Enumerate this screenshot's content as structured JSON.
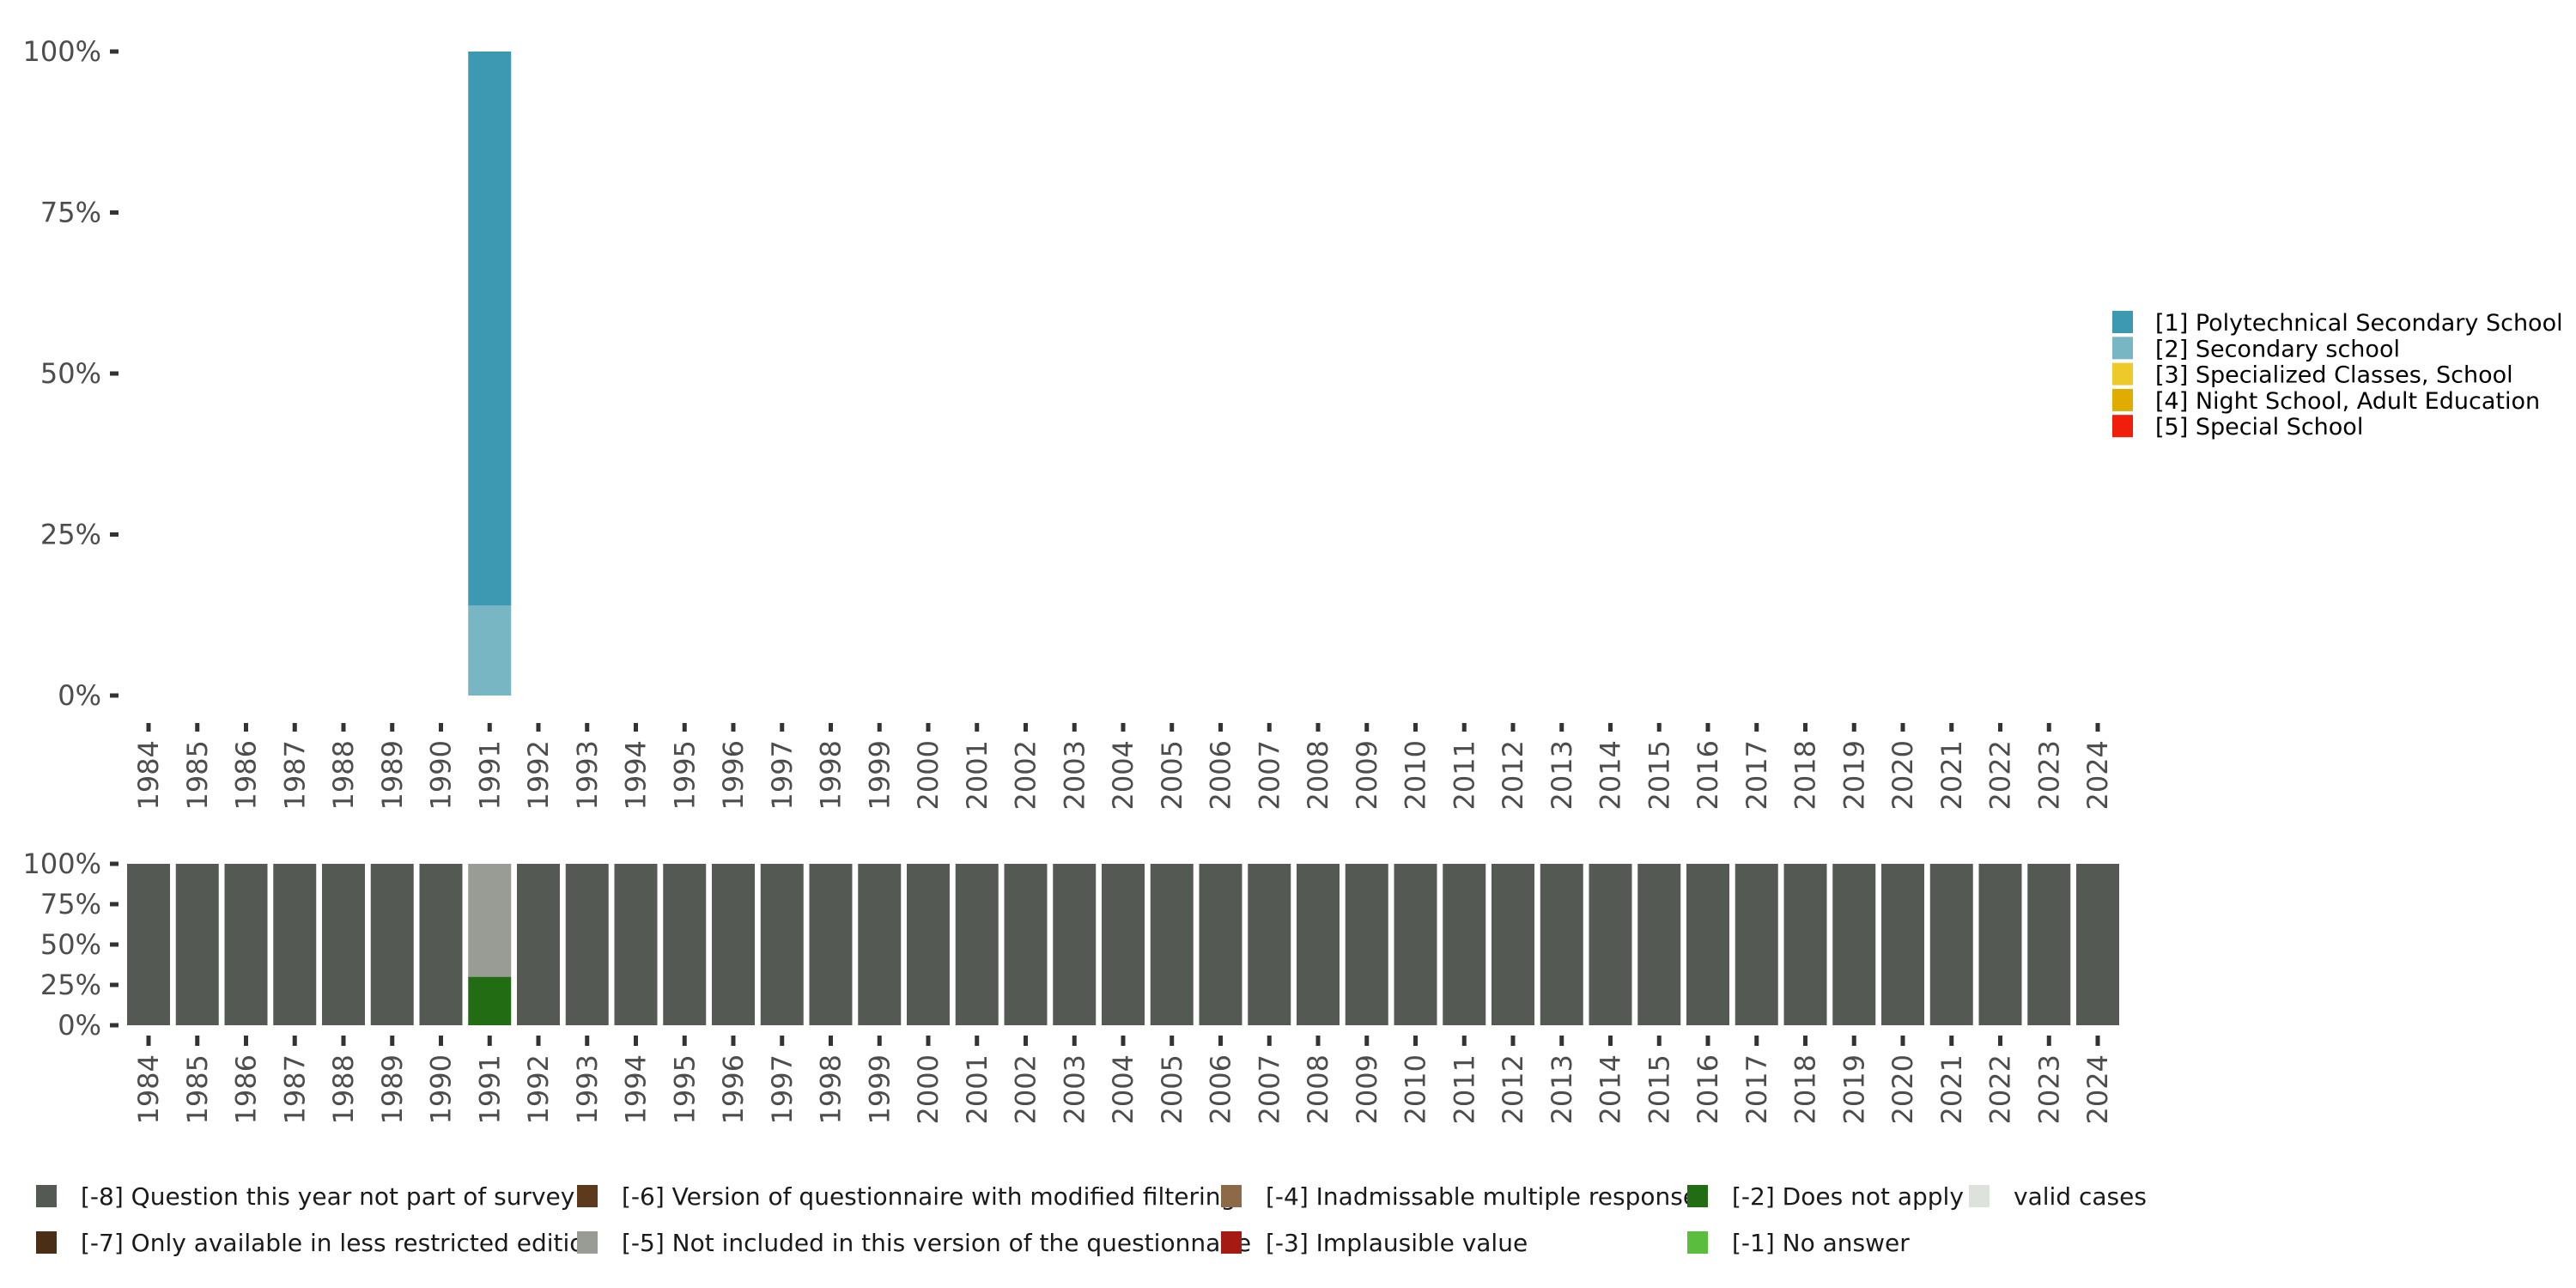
{
  "chart_data": [
    {
      "type": "bar",
      "stacked": true,
      "title": "",
      "xlabel": "",
      "ylabel": "",
      "ylim": [
        0,
        100
      ],
      "yticks": [
        "0%",
        "25%",
        "50%",
        "75%",
        "100%"
      ],
      "categories": [
        "1984",
        "1985",
        "1986",
        "1987",
        "1988",
        "1989",
        "1990",
        "1991",
        "1992",
        "1993",
        "1994",
        "1995",
        "1996",
        "1997",
        "1998",
        "1999",
        "2000",
        "2001",
        "2002",
        "2003",
        "2004",
        "2005",
        "2006",
        "2007",
        "2008",
        "2009",
        "2010",
        "2011",
        "2012",
        "2013",
        "2014",
        "2015",
        "2016",
        "2017",
        "2018",
        "2019",
        "2020",
        "2021",
        "2022",
        "2023",
        "2024"
      ],
      "legend_position": "right",
      "series": [
        {
          "name": "[1] Polytechnical Secondary School",
          "color": "#3d98b2",
          "values": {
            "1991": 86
          }
        },
        {
          "name": "[2] Secondary school",
          "color": "#79b6c4",
          "values": {
            "1991": 14
          }
        },
        {
          "name": "[3] Specialized Classes, School",
          "color": "#edca2a",
          "values": {}
        },
        {
          "name": "[4] Night School, Adult Education",
          "color": "#e0ac00",
          "values": {}
        },
        {
          "name": "[5] Special School",
          "color": "#f01e0a",
          "values": {}
        }
      ],
      "stack_order_bottom_to_top": [
        "[2] Secondary school",
        "[1] Polytechnical Secondary School"
      ]
    },
    {
      "type": "bar",
      "stacked": true,
      "ylim": [
        0,
        100
      ],
      "yticks": [
        "0%",
        "25%",
        "50%",
        "75%",
        "100%"
      ],
      "categories": [
        "1984",
        "1985",
        "1986",
        "1987",
        "1988",
        "1989",
        "1990",
        "1991",
        "1992",
        "1993",
        "1994",
        "1995",
        "1996",
        "1997",
        "1998",
        "1999",
        "2000",
        "2001",
        "2002",
        "2003",
        "2004",
        "2005",
        "2006",
        "2007",
        "2008",
        "2009",
        "2010",
        "2011",
        "2012",
        "2013",
        "2014",
        "2015",
        "2016",
        "2017",
        "2018",
        "2019",
        "2020",
        "2021",
        "2022",
        "2023",
        "2024"
      ],
      "legend_position": "bottom",
      "default_category": "[-8] Question this year not part of survey",
      "special": {
        "1991": [
          {
            "name": "[-2] Does not apply",
            "value": 30
          },
          {
            "name": "[-5] Not included in this version of the questionnaire",
            "value": 70
          }
        ]
      },
      "legend": [
        {
          "name": "[-8] Question this year not part of survey",
          "color": "#545a53"
        },
        {
          "name": "[-7] Only available in less restricted edition",
          "color": "#4b2e16"
        },
        {
          "name": "[-6] Version of questionnaire with modified filtering",
          "color": "#5c3a1b"
        },
        {
          "name": "[-5] Not included in this version of the questionnaire",
          "color": "#989c95"
        },
        {
          "name": "[-4] Inadmissable multiple response",
          "color": "#8c6a48"
        },
        {
          "name": "[-3] Implausible value",
          "color": "#a51b14"
        },
        {
          "name": "[-2] Does not apply",
          "color": "#226c13"
        },
        {
          "name": "[-1] No answer",
          "color": "#5bbd3e"
        },
        {
          "name": "valid cases",
          "color": "#dde3dc"
        }
      ]
    }
  ]
}
